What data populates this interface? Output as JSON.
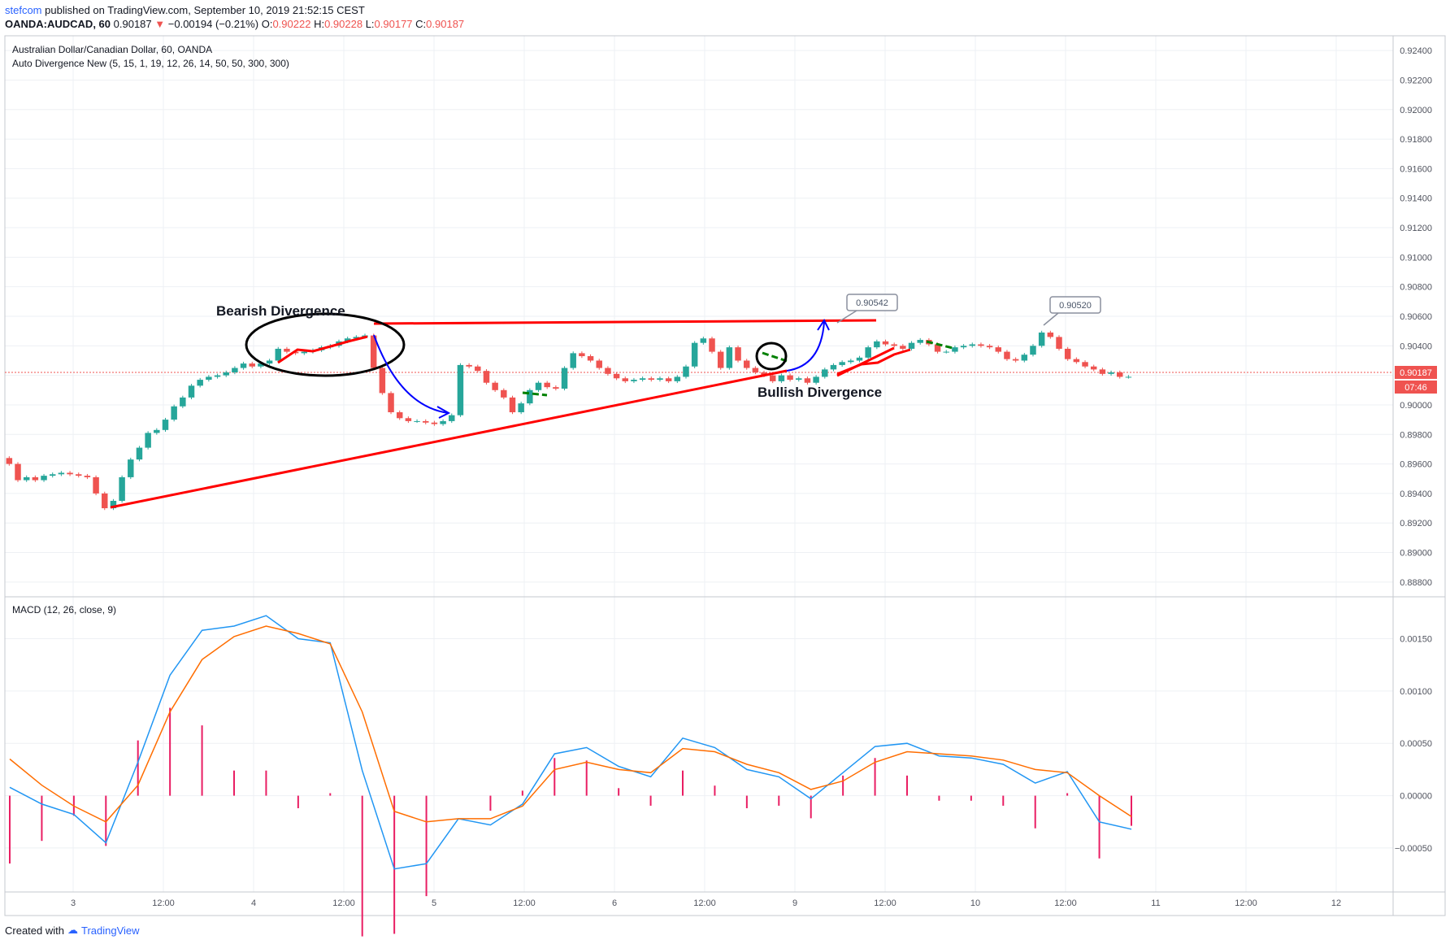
{
  "header": {
    "publisher": "stefcom",
    "published_text": "published on TradingView.com, September 10, 2019 21:52:15 CEST",
    "symbol": "OANDA:AUDCAD, 60",
    "last": "0.90187",
    "change": "−0.00194 (−0.21%)",
    "o_label": "O:",
    "o": "0.90222",
    "h_label": "H:",
    "h": "0.90228",
    "l_label": "L:",
    "l": "0.90177",
    "c_label": "C:",
    "c": "0.90187"
  },
  "price_pane": {
    "title": "Australian Dollar/Canadian Dollar, 60, OANDA",
    "indicator": "Auto Divergence New (5, 15, 1, 19, 12, 26, 14, 50, 50, 300, 300)",
    "price_ticks": [
      "0.92400",
      "0.92200",
      "0.92000",
      "0.91800",
      "0.91600",
      "0.91400",
      "0.91200",
      "0.91000",
      "0.90800",
      "0.90600",
      "0.90400",
      "0.90200",
      "0.90000",
      "0.89800",
      "0.89600",
      "0.89400",
      "0.89200",
      "0.89000",
      "0.88800"
    ],
    "last_price_label": "0.90187",
    "countdown_label": "07:46",
    "callouts": [
      "0.90542",
      "0.90520"
    ],
    "annotations": {
      "bearish": "Bearish Divergence",
      "bullish": "Bullish Divergence"
    }
  },
  "macd_pane": {
    "title": "MACD (12, 26, close, 9)",
    "ticks": [
      "0.00150",
      "0.00100",
      "0.00050",
      "0.00000",
      "−0.00050"
    ]
  },
  "time_axis": [
    "3",
    "12:00",
    "4",
    "12:00",
    "5",
    "12:00",
    "6",
    "12:00",
    "9",
    "12:00",
    "10",
    "12:00",
    "11",
    "12:00",
    "12"
  ],
  "footer": {
    "created_with": "Created with",
    "brand": "TradingView"
  },
  "colors": {
    "up": "#26a69a",
    "down": "#ef5350",
    "trendline": "#ff0000",
    "macd_line": "#2196f3",
    "signal_line": "#ff6d00",
    "histogram": "#e91e63",
    "arrow": "#0000ff"
  },
  "chart_data": [
    {
      "type": "candlestick",
      "title": "Australian Dollar/Canadian Dollar, 60, OANDA",
      "ylim": [
        0.887,
        0.925
      ],
      "last_price": 0.90187,
      "x_span_bars": 160,
      "closes": [
        0.896,
        0.8949,
        0.8951,
        0.8949,
        0.8952,
        0.8953,
        0.8954,
        0.8953,
        0.8952,
        0.8951,
        0.894,
        0.893,
        0.8935,
        0.8951,
        0.8963,
        0.8971,
        0.8981,
        0.8983,
        0.899,
        0.8999,
        0.9005,
        0.9013,
        0.9017,
        0.9019,
        0.902,
        0.9022,
        0.9025,
        0.9028,
        0.9026,
        0.9028,
        0.903,
        0.9038,
        0.9036,
        0.9035,
        0.9036,
        0.9037,
        0.9039,
        0.904,
        0.9043,
        0.9045,
        0.9046,
        0.9047,
        0.9025,
        0.9008,
        0.8995,
        0.8991,
        0.8989,
        0.8989,
        0.8988,
        0.8987,
        0.8989,
        0.8993,
        0.9027,
        0.9026,
        0.9023,
        0.9015,
        0.901,
        0.9005,
        0.8995,
        0.9001,
        0.901,
        0.9015,
        0.9012,
        0.9011,
        0.9025,
        0.9035,
        0.9033,
        0.903,
        0.9025,
        0.9021,
        0.9018,
        0.9016,
        0.9017,
        0.9018,
        0.9017,
        0.9018,
        0.9016,
        0.9019,
        0.9026,
        0.9042,
        0.9045,
        0.9036,
        0.9025,
        0.9039,
        0.903,
        0.9025,
        0.9022,
        0.902,
        0.9016,
        0.902,
        0.9017,
        0.9018,
        0.9015,
        0.9019,
        0.9024,
        0.9027,
        0.9029,
        0.903,
        0.9032,
        0.9039,
        0.9043,
        0.9041,
        0.904,
        0.9038,
        0.9042,
        0.9044,
        0.9041,
        0.9036,
        0.9036,
        0.9039,
        0.904,
        0.9041,
        0.904,
        0.9039,
        0.9036,
        0.9031,
        0.903,
        0.9034,
        0.904,
        0.9049,
        0.9046,
        0.9038,
        0.9031,
        0.9029,
        0.9026,
        0.9024,
        0.9021,
        0.9022,
        0.9019,
        0.9019
      ],
      "markers": [
        {
          "label": "0.90542",
          "value": 0.90542
        },
        {
          "label": "0.90520",
          "value": 0.9052
        }
      ]
    },
    {
      "type": "line",
      "title": "MACD (12, 26, close, 9)",
      "ylim": [
        -0.00092,
        0.0019
      ],
      "series": [
        {
          "color": "#2196f3",
          "values": [
            8e-05,
            -8e-05,
            -0.00018,
            -0.00045,
            0.00032,
            0.00115,
            0.00158,
            0.00162,
            0.00172,
            0.0015,
            0.00146,
            0.00024,
            -0.0007,
            -0.00065,
            -0.00022,
            -0.00028,
            -8e-05,
            0.0004,
            0.00046,
            0.00028,
            0.00018,
            0.00055,
            0.00046,
            0.00025,
            0.00018,
            -3e-05,
            0.00022,
            0.00047,
            0.0005,
            0.00038,
            0.00036,
            0.0003,
            0.00012,
            0.00023,
            -0.00025,
            -0.00032
          ]
        },
        {
          "color": "#ff6d00",
          "values": [
            0.00035,
            0.0001,
            -0.0001,
            -0.00025,
            0.0001,
            0.0008,
            0.0013,
            0.00152,
            0.00162,
            0.00155,
            0.00145,
            0.0008,
            -0.00015,
            -0.00025,
            -0.00022,
            -0.00022,
            -0.0001,
            0.00025,
            0.00032,
            0.00025,
            0.00022,
            0.00045,
            0.00042,
            0.0003,
            0.00022,
            6e-05,
            0.00014,
            0.00032,
            0.00042,
            0.0004,
            0.00038,
            0.00034,
            0.00025,
            0.00022,
            0.0,
            -0.0002
          ]
        }
      ]
    }
  ]
}
